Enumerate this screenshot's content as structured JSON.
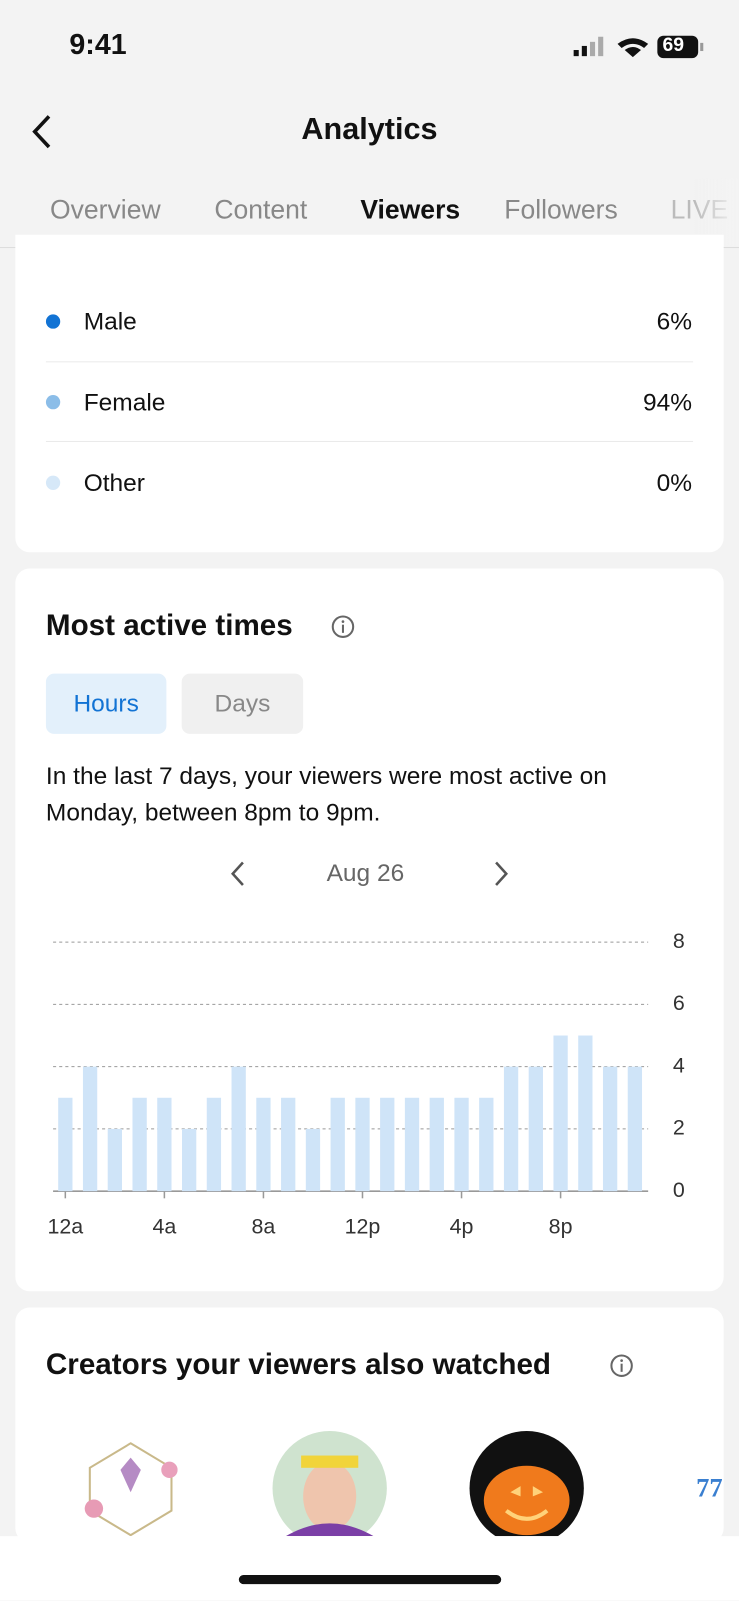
{
  "status_bar": {
    "time": "9:41",
    "battery": "69"
  },
  "header": {
    "title": "Analytics"
  },
  "tabs": [
    "Overview",
    "Content",
    "Viewers",
    "Followers",
    "LIVE"
  ],
  "gender": {
    "rows": [
      {
        "label": "Male",
        "value": "6%"
      },
      {
        "label": "Female",
        "value": "94%"
      },
      {
        "label": "Other",
        "value": "0%"
      }
    ]
  },
  "most_active": {
    "title": "Most active times",
    "toggle": [
      "Hours",
      "Days"
    ],
    "description": "In the last 7 days, your viewers were most active on Monday, between 8pm to 9pm.",
    "date": "Aug 26"
  },
  "chart_data": {
    "type": "bar",
    "categories": [
      "12a",
      null,
      null,
      null,
      "4a",
      null,
      null,
      null,
      "8a",
      null,
      null,
      null,
      "12p",
      null,
      null,
      null,
      "4p",
      null,
      null,
      null,
      "8p",
      null,
      null,
      null
    ],
    "values": [
      3,
      4,
      2,
      3,
      3,
      2,
      3,
      4,
      3,
      3,
      2,
      3,
      3,
      3,
      3,
      3,
      3,
      3,
      4,
      4,
      5,
      5,
      4,
      4
    ],
    "color": "#cfe4f8",
    "ylim": [
      0,
      8
    ],
    "yticks": [
      0,
      2,
      4,
      6,
      8
    ],
    "grid": true
  },
  "creators": {
    "title": "Creators your viewers also watched",
    "partial": "77"
  }
}
